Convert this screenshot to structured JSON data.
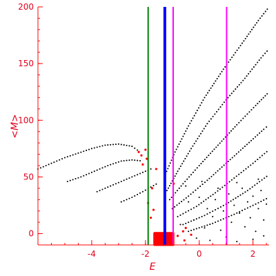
{
  "chart_data": {
    "type": "scatter",
    "title": "",
    "xlabel": "E",
    "ylabel": "<M>",
    "xlim": [
      -6,
      2.6
    ],
    "ylim": [
      -10,
      200
    ],
    "xticks": [
      -4,
      -2,
      0,
      2
    ],
    "yticks": [
      0,
      50,
      100,
      150,
      200
    ],
    "grid": false,
    "colors": {
      "axis": "#ff0000",
      "black_points": "#000000",
      "red_points": "#ff0000",
      "green_line": "#008000",
      "blue_line": "#0000ff",
      "magenta_line": "#ff00ff"
    },
    "vertical_lines": [
      {
        "x": -1.9,
        "color": "#008000"
      },
      {
        "x": -1.28,
        "color": "#0000ff"
      },
      {
        "x": -0.97,
        "color": "#ff00ff"
      },
      {
        "x": 1.02,
        "color": "#ff00ff"
      }
    ],
    "branches": [
      {
        "color": "#000000",
        "x": [
          -6.0,
          -5.5,
          -5.0,
          -4.5,
          -4.0,
          -3.5,
          -3.0,
          -2.5,
          -2.2
        ],
        "y": [
          57,
          62,
          67,
          71,
          75,
          78,
          79,
          77,
          72
        ]
      },
      {
        "color": "#000000",
        "x": [
          -4.9,
          -4.4,
          -3.9,
          -3.4,
          -2.9,
          -2.5,
          -2.1
        ],
        "y": [
          46,
          50,
          55,
          60,
          64,
          65,
          64
        ]
      },
      {
        "color": "#000000",
        "x": [
          -3.8,
          -3.3,
          -2.8,
          -2.4,
          -2.0,
          -1.7
        ],
        "y": [
          37,
          42,
          47,
          51,
          55,
          58
        ]
      },
      {
        "color": "#000000",
        "x": [
          -2.9,
          -2.5,
          -2.1,
          -1.8,
          -1.5
        ],
        "y": [
          28,
          32,
          37,
          41,
          45
        ]
      },
      {
        "color": "#000000",
        "x": [
          -1.3,
          -0.9,
          -0.4,
          0.2,
          0.9,
          1.6,
          2.2,
          2.6
        ],
        "y": [
          50,
          72,
          95,
          120,
          145,
          168,
          188,
          200
        ]
      },
      {
        "color": "#000000",
        "x": [
          -1.2,
          -0.8,
          -0.3,
          0.3,
          1.0,
          1.7,
          2.3,
          2.6
        ],
        "y": [
          38,
          55,
          75,
          97,
          118,
          137,
          155,
          163
        ]
      },
      {
        "color": "#000000",
        "x": [
          -1.1,
          -0.6,
          0.0,
          0.7,
          1.4,
          2.1,
          2.6
        ],
        "y": [
          30,
          44,
          60,
          78,
          96,
          113,
          125
        ]
      },
      {
        "color": "#000000",
        "x": [
          -1.0,
          -0.4,
          0.3,
          1.0,
          1.7,
          2.4,
          2.6
        ],
        "y": [
          22,
          33,
          47,
          62,
          77,
          92,
          96
        ]
      },
      {
        "color": "#000000",
        "x": [
          -0.8,
          -0.1,
          0.6,
          1.3,
          2.0,
          2.6
        ],
        "y": [
          15,
          24,
          36,
          49,
          62,
          74
        ]
      },
      {
        "color": "#000000",
        "x": [
          -0.6,
          0.2,
          1.0,
          1.8,
          2.6
        ],
        "y": [
          8,
          16,
          26,
          38,
          52
        ]
      },
      {
        "color": "#000000",
        "x": [
          -0.4,
          0.5,
          1.3,
          2.1,
          2.6
        ],
        "y": [
          2,
          9,
          17,
          26,
          32
        ]
      }
    ],
    "scatter_black": [
      {
        "x": -0.7,
        "y": 8
      },
      {
        "x": -0.4,
        "y": 28
      },
      {
        "x": -0.2,
        "y": 12
      },
      {
        "x": 0.0,
        "y": 32
      },
      {
        "x": 0.2,
        "y": 5
      },
      {
        "x": 0.3,
        "y": 22
      },
      {
        "x": 0.5,
        "y": 15
      },
      {
        "x": 0.6,
        "y": 30
      },
      {
        "x": 0.8,
        "y": 3
      },
      {
        "x": 0.9,
        "y": 20
      },
      {
        "x": 1.1,
        "y": 35
      },
      {
        "x": 1.2,
        "y": 10
      },
      {
        "x": 1.3,
        "y": 25
      },
      {
        "x": 1.5,
        "y": 18
      },
      {
        "x": 1.6,
        "y": 40
      },
      {
        "x": 1.7,
        "y": 6
      },
      {
        "x": 1.8,
        "y": 28
      },
      {
        "x": 1.9,
        "y": 14
      },
      {
        "x": 2.0,
        "y": 33
      },
      {
        "x": 2.1,
        "y": 2
      },
      {
        "x": 2.2,
        "y": 22
      },
      {
        "x": 2.3,
        "y": 38
      },
      {
        "x": 2.4,
        "y": 12
      },
      {
        "x": 2.5,
        "y": 26
      },
      {
        "x": -0.1,
        "y": -4
      },
      {
        "x": 0.4,
        "y": -6
      },
      {
        "x": 1.0,
        "y": -3
      },
      {
        "x": 1.4,
        "y": -7
      },
      {
        "x": 2.0,
        "y": -5
      },
      {
        "x": 2.4,
        "y": -2
      },
      {
        "x": -0.5,
        "y": 42
      },
      {
        "x": 0.1,
        "y": 46
      },
      {
        "x": 0.7,
        "y": 40
      },
      {
        "x": 1.4,
        "y": 45
      },
      {
        "x": 2.2,
        "y": 48
      }
    ],
    "scatter_red": [
      {
        "x": -2.25,
        "y": 72
      },
      {
        "x": -2.15,
        "y": 69
      },
      {
        "x": -2.0,
        "y": 74
      },
      {
        "x": -2.1,
        "y": 61
      },
      {
        "x": -1.95,
        "y": 66
      },
      {
        "x": -1.6,
        "y": 57
      },
      {
        "x": -1.75,
        "y": 40
      },
      {
        "x": -1.7,
        "y": 21
      },
      {
        "x": -1.8,
        "y": 14
      },
      {
        "x": -1.9,
        "y": 27
      },
      {
        "x": -0.95,
        "y": 44
      },
      {
        "x": -0.6,
        "y": 2
      },
      {
        "x": -0.5,
        "y": 5
      },
      {
        "x": -0.8,
        "y": -2
      },
      {
        "x": -0.3,
        "y": -1
      },
      {
        "x": -0.55,
        "y": -6
      }
    ],
    "dense_red_cluster": {
      "x_range": [
        -1.65,
        -0.95
      ],
      "y_range": [
        -10,
        0
      ],
      "color": "#ff0000"
    }
  }
}
